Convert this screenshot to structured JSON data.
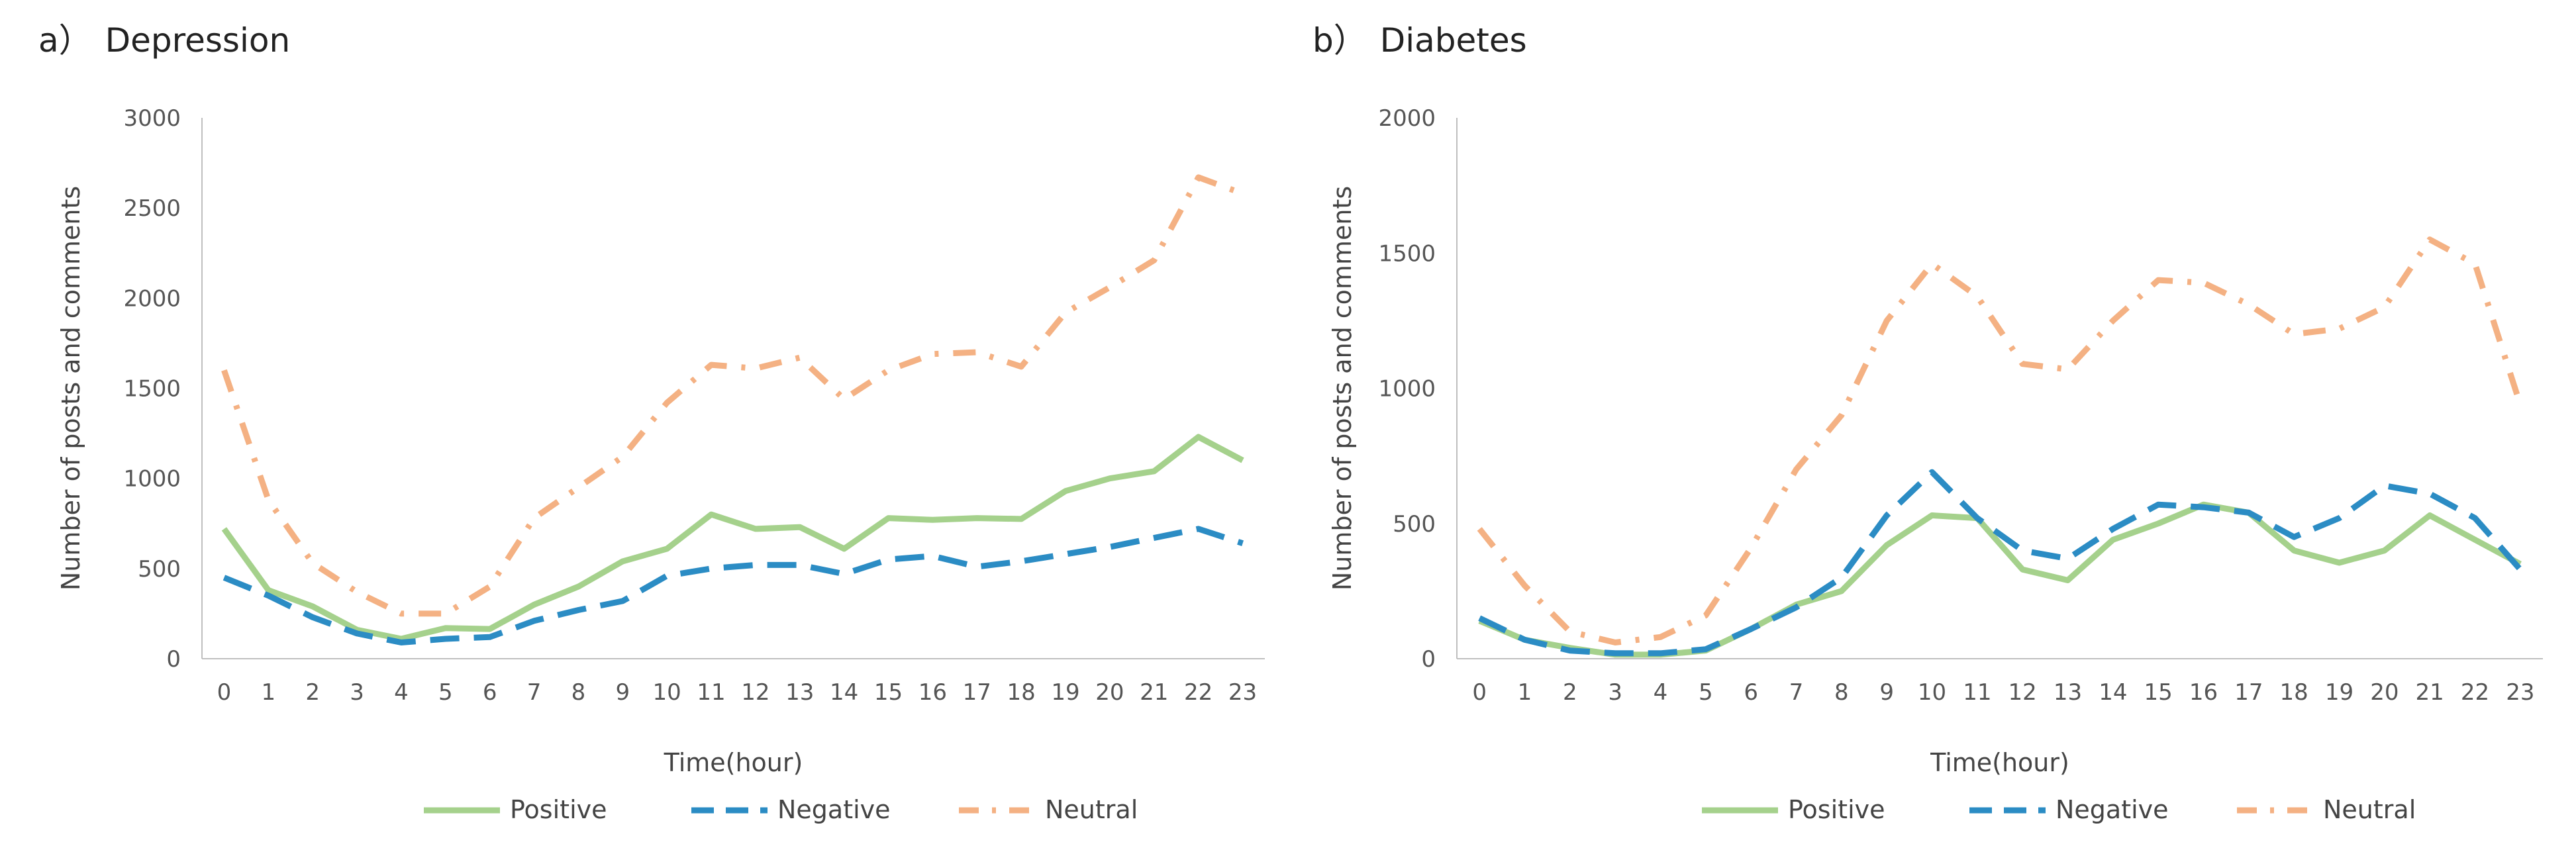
{
  "chart_data": [
    {
      "type": "line",
      "panel_label": "a）",
      "title": "Depression",
      "xlabel": "Time(hour)",
      "ylabel": "Number of posts and comments",
      "ylim": [
        0,
        3000
      ],
      "yticks": [
        0,
        500,
        1000,
        1500,
        2000,
        2500,
        3000
      ],
      "categories": [
        "0",
        "1",
        "2",
        "3",
        "4",
        "5",
        "6",
        "7",
        "8",
        "9",
        "10",
        "11",
        "12",
        "13",
        "14",
        "15",
        "16",
        "17",
        "18",
        "19",
        "20",
        "21",
        "22",
        "23"
      ],
      "grid": false,
      "legend_position": "bottom",
      "series": [
        {
          "name": "Positive",
          "color": "#A5D18C",
          "style": "solid",
          "values": [
            720,
            380,
            290,
            160,
            110,
            170,
            165,
            300,
            400,
            540,
            610,
            800,
            720,
            730,
            610,
            780,
            770,
            780,
            775,
            930,
            1000,
            1040,
            1230,
            1100
          ]
        },
        {
          "name": "Negative",
          "color": "#2B8CC4",
          "style": "dashed",
          "values": [
            450,
            350,
            230,
            140,
            90,
            110,
            120,
            210,
            270,
            320,
            460,
            500,
            520,
            520,
            470,
            550,
            570,
            510,
            540,
            580,
            620,
            670,
            720,
            640
          ]
        },
        {
          "name": "Neutral",
          "color": "#F4B183",
          "style": "dashdot",
          "values": [
            1600,
            880,
            530,
            370,
            250,
            250,
            400,
            780,
            950,
            1120,
            1420,
            1630,
            1610,
            1670,
            1440,
            1600,
            1690,
            1700,
            1620,
            1920,
            2060,
            2210,
            2670,
            2580
          ]
        }
      ]
    },
    {
      "type": "line",
      "panel_label": "b）",
      "title": "Diabetes",
      "xlabel": "Time(hour)",
      "ylabel": "Number of posts and comments",
      "ylim": [
        0,
        2000
      ],
      "yticks": [
        0,
        500,
        1000,
        1500,
        2000
      ],
      "categories": [
        "0",
        "1",
        "2",
        "3",
        "4",
        "5",
        "6",
        "7",
        "8",
        "9",
        "10",
        "11",
        "12",
        "13",
        "14",
        "15",
        "16",
        "17",
        "18",
        "19",
        "20",
        "21",
        "22",
        "23"
      ],
      "grid": false,
      "legend_position": "bottom",
      "series": [
        {
          "name": "Positive",
          "color": "#A5D18C",
          "style": "solid",
          "values": [
            140,
            70,
            40,
            15,
            15,
            30,
            110,
            200,
            250,
            420,
            530,
            520,
            330,
            290,
            440,
            500,
            570,
            540,
            400,
            355,
            400,
            530,
            440,
            350
          ]
        },
        {
          "name": "Negative",
          "color": "#2B8CC4",
          "style": "dashed",
          "values": [
            150,
            70,
            30,
            20,
            20,
            35,
            110,
            190,
            300,
            530,
            690,
            520,
            400,
            370,
            480,
            570,
            560,
            540,
            450,
            520,
            640,
            610,
            520,
            330
          ]
        },
        {
          "name": "Neutral",
          "color": "#F4B183",
          "style": "dashdot",
          "values": [
            480,
            270,
            100,
            60,
            80,
            160,
            410,
            700,
            900,
            1250,
            1460,
            1340,
            1090,
            1070,
            1250,
            1400,
            1390,
            1310,
            1200,
            1220,
            1300,
            1550,
            1460,
            940
          ]
        }
      ]
    }
  ]
}
